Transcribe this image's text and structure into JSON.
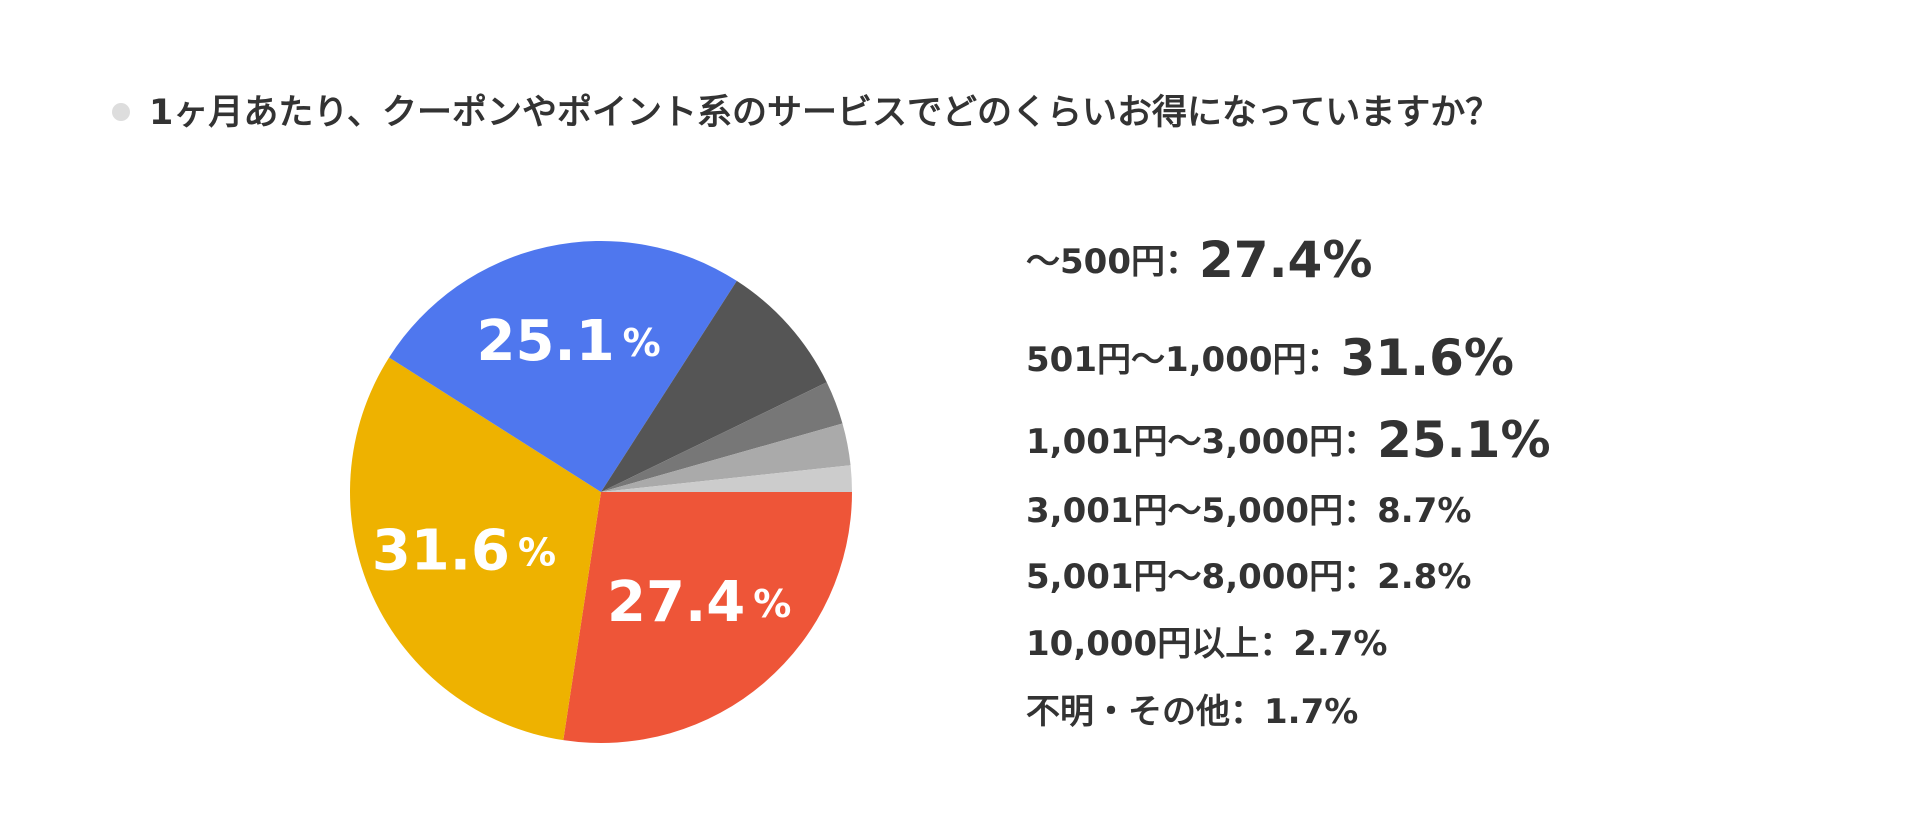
{
  "chart_data": {
    "type": "pie",
    "title": "1ヶ月あたり、クーポンやポイント系のサービスでどのくらいお得になっていますか？",
    "categories": [
      "〜500円",
      "501円〜1,000円",
      "1,001円〜3,000円",
      "3,001円〜5,000円",
      "5,001円〜8,000円",
      "10,000円以上",
      "不明・その他"
    ],
    "values": [
      27.4,
      31.6,
      25.1,
      8.7,
      2.8,
      2.7,
      1.7
    ],
    "value_labels": [
      "27.4%",
      "31.6%",
      "25.1%",
      "8.7%",
      "2.8%",
      "2.7%",
      "1.7%"
    ],
    "colors": [
      "#ee5538",
      "#eeb200",
      "#4f77ee",
      "#555555",
      "#777777",
      "#aaaaaa",
      "#cccccc"
    ],
    "legend_separator": "："
  }
}
